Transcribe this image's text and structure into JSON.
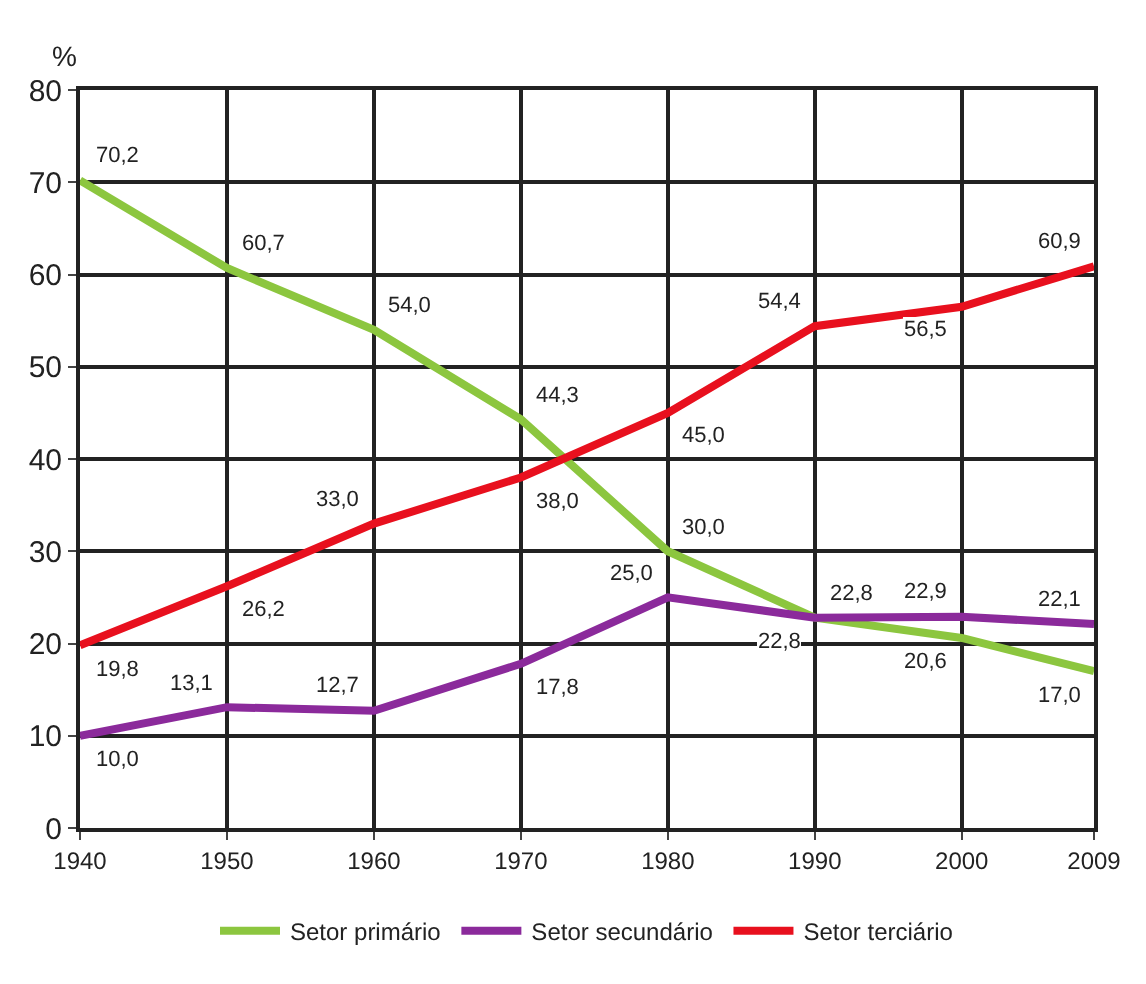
{
  "chart_data": {
    "type": "line",
    "ylabel": "%",
    "x": [
      1940,
      1950,
      1960,
      1970,
      1980,
      1990,
      2000,
      2009
    ],
    "xlim": [
      1940,
      2009
    ],
    "xticks": [
      1940,
      1950,
      1960,
      1970,
      1980,
      1990,
      2000,
      2009
    ],
    "ylim": [
      0,
      80
    ],
    "yticks": [
      0,
      10,
      20,
      30,
      40,
      50,
      60,
      70,
      80
    ],
    "grid": true,
    "legend": "bottom",
    "marker": "none",
    "line_style": "solid",
    "series": [
      {
        "name": "Setor primário",
        "color": "#8cc63f",
        "values": [
          70.2,
          60.7,
          54.0,
          44.3,
          30.0,
          22.8,
          20.6,
          17.0
        ],
        "value_labels": [
          "70,2",
          "60,7",
          "54,0",
          "44,3",
          "30,0",
          "22,8",
          "20,6",
          "17,0"
        ]
      },
      {
        "name": "Setor secundário",
        "color": "#8b2a9b",
        "values": [
          10.0,
          13.1,
          12.7,
          17.8,
          25.0,
          22.8,
          22.9,
          22.1
        ],
        "value_labels": [
          "10,0",
          "13,1",
          "12,7",
          "17,8",
          "25,0",
          "22,8",
          "22,9",
          "22,1"
        ]
      },
      {
        "name": "Setor terciário",
        "color": "#e8101e",
        "values": [
          19.8,
          26.2,
          33.0,
          38.0,
          45.0,
          54.4,
          56.5,
          60.9
        ],
        "value_labels": [
          "19,8",
          "26,2",
          "33,0",
          "38,0",
          "45,0",
          "54,4",
          "56,5",
          "60,9"
        ]
      }
    ]
  }
}
